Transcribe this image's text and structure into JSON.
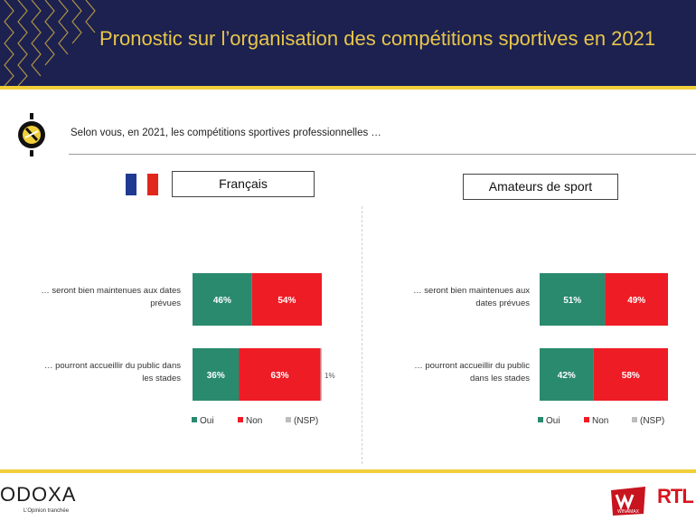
{
  "header": {
    "title": "Pronostic sur l’organisation des compétitions sportives en 2021"
  },
  "question": {
    "text": "Selon vous, en 2021, les compétitions sportives professionnelles …"
  },
  "sections": {
    "left_title": "Français",
    "right_title": "Amateurs de sport"
  },
  "colors": {
    "header_bg": "#1c2150",
    "accent_gold": "#f0cf3a",
    "oui": "#2a8a6e",
    "non": "#ee1c25",
    "nsp": "#bdbdbd"
  },
  "chart_data": [
    {
      "type": "bar",
      "orientation": "horizontal",
      "stacked": true,
      "title": "Français",
      "categories": [
        "… seront bien maintenues aux dates prévues",
        "… pourront accueillir du public dans les stades"
      ],
      "category_lines": [
        [
          "… seront bien maintenues aux dates",
          "prévues"
        ],
        [
          "… pourront accueillir du public dans",
          "les stades"
        ]
      ],
      "series": [
        {
          "name": "Oui",
          "values": [
            46,
            36
          ],
          "labels": [
            "46%",
            "36%"
          ]
        },
        {
          "name": "Non",
          "values": [
            54,
            63
          ],
          "labels": [
            "54%",
            "63%"
          ]
        },
        {
          "name": "(NSP)",
          "values": [
            0,
            1
          ],
          "labels": [
            "",
            "1%"
          ]
        }
      ],
      "xlim": [
        0,
        100
      ],
      "legend": "bottom"
    },
    {
      "type": "bar",
      "orientation": "horizontal",
      "stacked": true,
      "title": "Amateurs de sport",
      "categories": [
        "… seront bien maintenues aux dates prévues",
        "… pourront accueillir du public dans les stades"
      ],
      "category_lines": [
        [
          "… seront bien maintenues aux",
          "dates prévues"
        ],
        [
          "… pourront accueillir du public",
          "dans les stades"
        ]
      ],
      "series": [
        {
          "name": "Oui",
          "values": [
            51,
            42
          ],
          "labels": [
            "51%",
            "42%"
          ]
        },
        {
          "name": "Non",
          "values": [
            49,
            58
          ],
          "labels": [
            "49%",
            "58%"
          ]
        },
        {
          "name": "(NSP)",
          "values": [
            0,
            0
          ],
          "labels": [
            "",
            ""
          ]
        }
      ],
      "xlim": [
        0,
        100
      ],
      "legend": "bottom"
    }
  ],
  "footer": {
    "brand": "ODOXA",
    "tagline": "L’Opinion tranchée",
    "partner1": "WINAMAX",
    "partner2": "RTL"
  }
}
